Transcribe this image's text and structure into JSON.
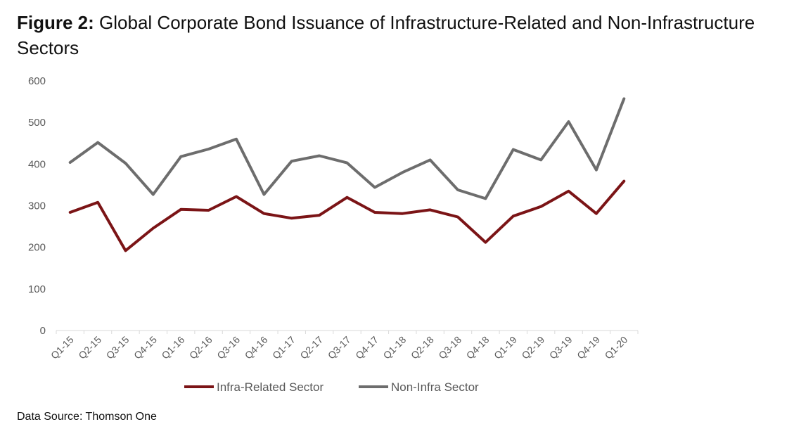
{
  "figure": {
    "label": "Figure 2",
    "separator": ":",
    "title": " Global Corporate Bond Issuance of Infrastructure-Related and Non-Infrastructure Sectors"
  },
  "source": "Data Source: Thomson One",
  "chart_data": {
    "type": "line",
    "categories": [
      "Q1-15",
      "Q2-15",
      "Q3-15",
      "Q4-15",
      "Q1-16",
      "Q2-16",
      "Q3-16",
      "Q4-16",
      "Q1-17",
      "Q2-17",
      "Q3-17",
      "Q4-17",
      "Q1-18",
      "Q2-18",
      "Q3-18",
      "Q4-18",
      "Q1-19",
      "Q2-19",
      "Q3-19",
      "Q4-19",
      "Q1-20"
    ],
    "series": [
      {
        "name": "Infra-Related Sector",
        "color": "#7b1416",
        "values": [
          284,
          308,
          192,
          246,
          291,
          289,
          322,
          281,
          270,
          277,
          320,
          284,
          281,
          290,
          273,
          212,
          275,
          298,
          335,
          281,
          359
        ]
      },
      {
        "name": "Non-Infra Sector",
        "color": "#6d6d6d",
        "values": [
          404,
          452,
          402,
          327,
          418,
          436,
          460,
          327,
          407,
          420,
          403,
          344,
          380,
          410,
          338,
          317,
          435,
          410,
          502,
          386,
          557
        ]
      }
    ],
    "ylim": [
      0,
      600
    ],
    "yticks": [
      0,
      100,
      200,
      300,
      400,
      500,
      600
    ],
    "grid": false,
    "legend": "bottom-center",
    "xlabel": "",
    "ylabel": ""
  }
}
